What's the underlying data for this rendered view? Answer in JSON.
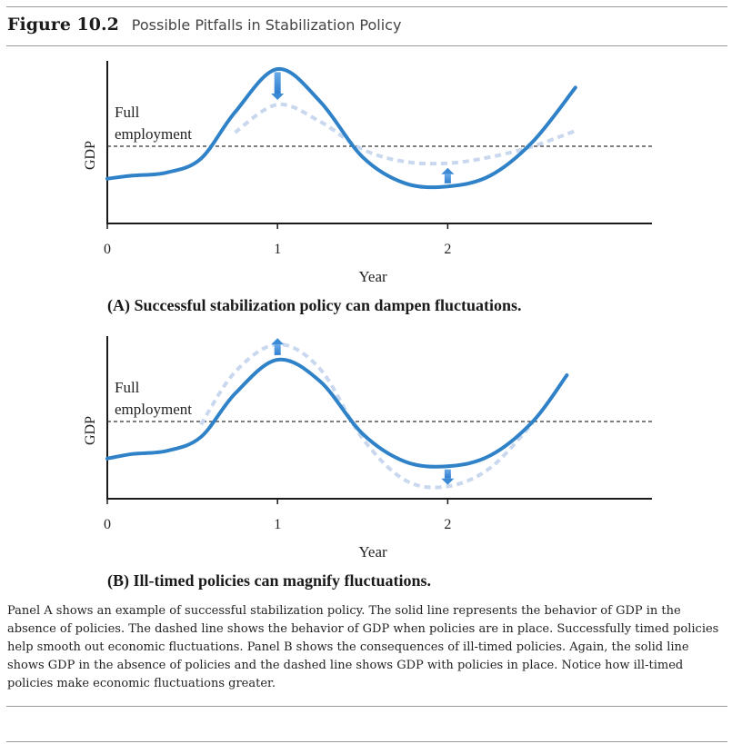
{
  "figure": {
    "number": "Figure 10.2",
    "title": "Possible Pitfalls in Stabilization Policy"
  },
  "caption": "Panel A shows an example of successful stabilization policy. The solid line represents the behavior of GDP in the absence of policies. The dashed line shows the behavior of GDP when policies are in place. Successfully timed policies help smooth out economic fluctuations. Panel B shows the consequences of ill-timed policies. Again, the solid line shows GDP in the absence of policies and the dashed line shows GDP with policies in place. Notice how ill-timed policies make economic fluctuations greater.",
  "colors": {
    "solid_line": "#2f82c8",
    "dashed_line": "#c9d8ee",
    "arrow": "#3a8ad6",
    "axis": "#1a1a1a",
    "reference_line": "#333333"
  },
  "chart_data": [
    {
      "type": "line",
      "panel_title": "(A) Successful stabilization policy can dampen fluctuations.",
      "xlabel": "Year",
      "ylabel": "GDP",
      "x_ticks": [
        "0",
        "1",
        "2"
      ],
      "xlim": [
        0,
        3.2
      ],
      "ylim": [
        0,
        10
      ],
      "reference_line": {
        "label_line1": "Full",
        "label_line2": "employment",
        "y": 5
      },
      "series": [
        {
          "style": "solid",
          "x": [
            0,
            0.15,
            0.35,
            0.55,
            0.75,
            1.0,
            1.25,
            1.5,
            1.75,
            2.0,
            2.25,
            2.5,
            2.75
          ],
          "y": [
            2.9,
            3.1,
            3.3,
            4.2,
            7.2,
            10.0,
            7.9,
            4.3,
            2.6,
            2.4,
            3.1,
            5.3,
            8.8
          ]
        },
        {
          "style": "dashed",
          "x": [
            0.75,
            1.0,
            1.25,
            1.5,
            1.75,
            2.0,
            2.25,
            2.5,
            2.75
          ],
          "y": [
            5.9,
            7.7,
            6.6,
            4.8,
            4.0,
            3.9,
            4.3,
            5.0,
            6.0
          ]
        }
      ],
      "arrows": [
        {
          "x": 1.0,
          "from": 9.8,
          "to": 8.0,
          "direction": "down"
        },
        {
          "x": 2.0,
          "from": 2.6,
          "to": 3.6,
          "direction": "up"
        }
      ]
    },
    {
      "type": "line",
      "panel_title": "(B) Ill-timed policies can magnify fluctuations.",
      "xlabel": "Year",
      "ylabel": "GDP",
      "x_ticks": [
        "0",
        "1",
        "2"
      ],
      "xlim": [
        0,
        3.2
      ],
      "ylim": [
        0,
        10
      ],
      "reference_line": {
        "label_line1": "Full",
        "label_line2": "employment",
        "y": 5
      },
      "series": [
        {
          "style": "solid",
          "x": [
            0,
            0.15,
            0.35,
            0.55,
            0.75,
            1.0,
            1.25,
            1.5,
            1.75,
            2.0,
            2.25,
            2.5,
            2.7
          ],
          "y": [
            2.6,
            2.9,
            3.1,
            4.0,
            6.8,
            9.0,
            7.6,
            4.2,
            2.4,
            2.1,
            2.8,
            5.0,
            8.0
          ]
        },
        {
          "style": "dashed",
          "x": [
            0.55,
            0.75,
            1.0,
            1.25,
            1.5,
            1.75,
            2.0,
            2.25,
            2.5
          ],
          "y": [
            4.8,
            8.2,
            10.0,
            8.4,
            3.9,
            1.2,
            0.8,
            2.0,
            4.9
          ]
        }
      ],
      "arrows": [
        {
          "x": 1.0,
          "from": 9.3,
          "to": 10.4,
          "direction": "up"
        },
        {
          "x": 2.0,
          "from": 1.9,
          "to": 0.9,
          "direction": "down"
        }
      ]
    }
  ]
}
